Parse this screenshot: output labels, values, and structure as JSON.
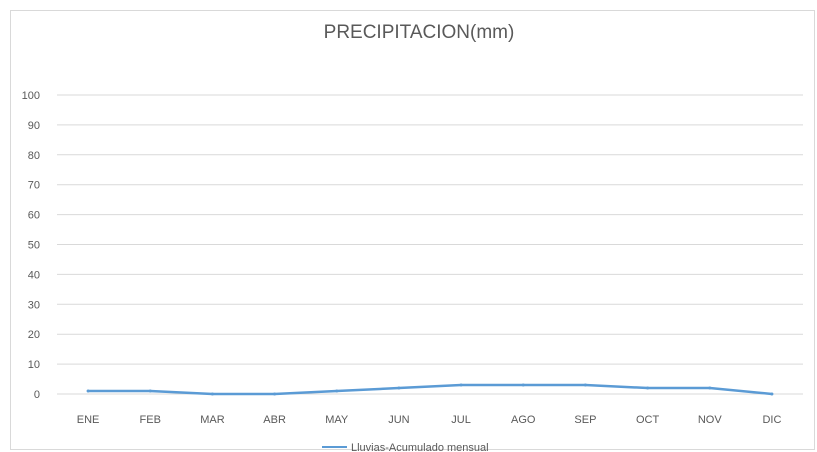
{
  "chart_data": {
    "type": "line",
    "title": "PRECIPITACION(mm)",
    "xlabel": "",
    "ylabel": "",
    "categories": [
      "ENE",
      "FEB",
      "MAR",
      "ABR",
      "MAY",
      "JUN",
      "JUL",
      "AGO",
      "SEP",
      "OCT",
      "NOV",
      "DIC"
    ],
    "series": [
      {
        "name": "Lluvias-Acumulado mensual",
        "values": [
          1,
          1,
          0,
          0,
          1,
          2,
          3,
          3,
          3,
          2,
          2,
          0
        ]
      }
    ],
    "ylim": [
      0,
      100
    ],
    "yticks": [
      0,
      10,
      20,
      30,
      40,
      50,
      60,
      70,
      80,
      90,
      100
    ],
    "grid": true,
    "legend_position": "bottom",
    "colors": {
      "series": "#5b9bd5",
      "grid": "#d9d9d9",
      "text": "#595959",
      "border": "#d9d9d9"
    }
  }
}
